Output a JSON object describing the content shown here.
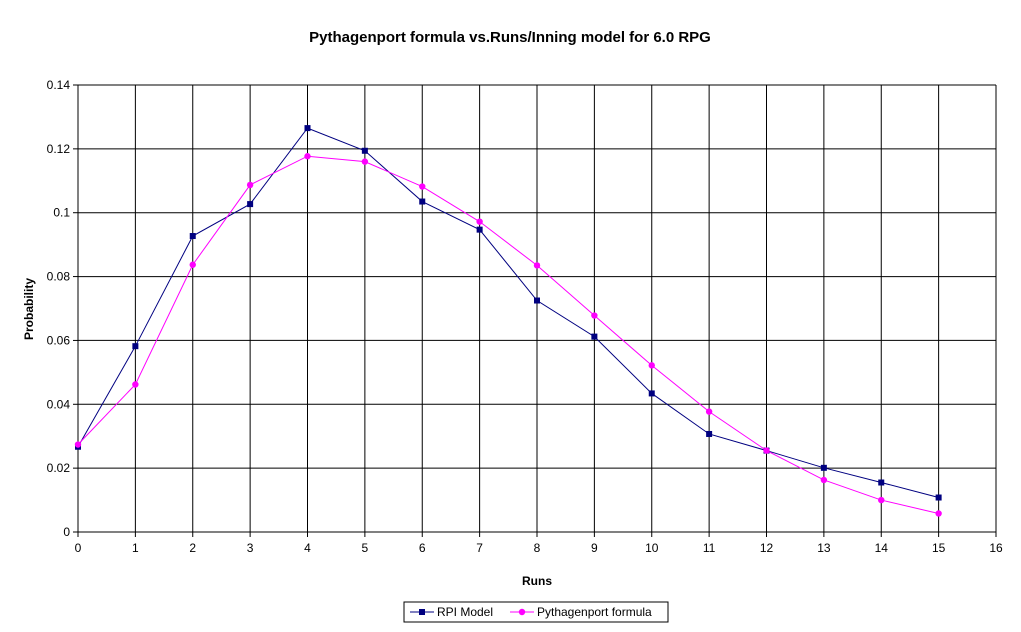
{
  "chart_data": {
    "type": "line",
    "title": "Pythagenport formula vs.Runs/Inning model for 6.0 RPG",
    "xlabel": "Runs",
    "ylabel": "Probability",
    "xlim": [
      0,
      16
    ],
    "ylim": [
      0,
      0.14
    ],
    "x_ticks": [
      0,
      1,
      2,
      3,
      4,
      5,
      6,
      7,
      8,
      9,
      10,
      11,
      12,
      13,
      14,
      15,
      16
    ],
    "y_ticks": [
      0,
      0.02,
      0.04,
      0.06,
      0.08,
      0.1,
      0.12,
      0.14
    ],
    "y_tick_labels": [
      "0",
      "0.02",
      "0.04",
      "0.06",
      "0.08",
      "0.1",
      "0.12",
      "0.14"
    ],
    "grid": true,
    "legend_position": "bottom",
    "x": [
      0,
      1,
      2,
      3,
      4,
      5,
      6,
      7,
      8,
      9,
      10,
      11,
      12,
      13,
      14,
      15
    ],
    "series": [
      {
        "name": "RPI Model",
        "color": "#000080",
        "marker": "square",
        "values": [
          0.0267,
          0.0582,
          0.0927,
          0.1027,
          0.1265,
          0.1194,
          0.1035,
          0.0947,
          0.0725,
          0.0612,
          0.0434,
          0.0307,
          0.0255,
          0.0201,
          0.0155,
          0.0108
        ]
      },
      {
        "name": "Pythagenport formula",
        "color": "#ff00ff",
        "marker": "circle",
        "values": [
          0.0274,
          0.0462,
          0.0837,
          0.1087,
          0.1177,
          0.116,
          0.1082,
          0.0972,
          0.0835,
          0.0678,
          0.0522,
          0.0377,
          0.0255,
          0.0163,
          0.01,
          0.0058
        ]
      }
    ]
  }
}
